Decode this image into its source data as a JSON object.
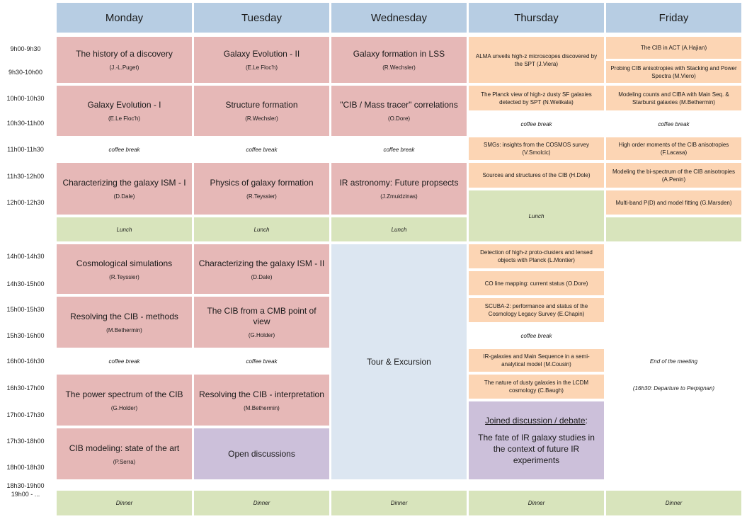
{
  "days": [
    "Monday",
    "Tuesday",
    "Wednesday",
    "Thursday",
    "Friday"
  ],
  "times": [
    "9h00-9h30",
    "9h30-10h00",
    "10h00-10h30",
    "10h30-11h00",
    "11h00-11h30",
    "11h30-12h00",
    "12h00-12h30",
    "14h00-14h30",
    "14h30-15h00",
    "15h00-15h30",
    "15h30-16h00",
    "16h00-16h30",
    "16h30-17h00",
    "17h00-17h30",
    "17h30-18h00",
    "18h00-18h30",
    "18h30-19h00",
    "19h00 - ..."
  ],
  "monday": {
    "s1": {
      "title": "The history of a discovery",
      "speaker": "(J.-L.Puget)"
    },
    "s2": {
      "title": "Galaxy Evolution - I",
      "speaker": "(E.Le Floc'h)"
    },
    "coffee1": "coffee break",
    "s3": {
      "title": "Characterizing the galaxy ISM - I",
      "speaker": "(D.Dale)"
    },
    "lunch": "Lunch",
    "s4": {
      "title": "Cosmological simulations",
      "speaker": "(R.Teyssier)"
    },
    "s5": {
      "title": "Resolving the CIB - methods",
      "speaker": "(M.Bethermin)"
    },
    "coffee2": "coffee break",
    "s6": {
      "title": "The power spectrum of the CIB",
      "speaker": "(G.Holder)"
    },
    "s7": {
      "title": "CIB modeling: state of the art",
      "speaker": "(P.Serra)"
    },
    "dinner": "Dinner"
  },
  "tuesday": {
    "s1": {
      "title": "Galaxy Evolution - II",
      "speaker": "(E.Le Floc'h)"
    },
    "s2": {
      "title": "Structure formation",
      "speaker": "(R.Wechsler)"
    },
    "coffee1": "coffee break",
    "s3": {
      "title": "Physics of galaxy formation",
      "speaker": "(R.Teyssier)"
    },
    "lunch": "Lunch",
    "s4": {
      "title": "Characterizing the galaxy ISM - II",
      "speaker": "(D.Dale)"
    },
    "s5": {
      "title": "The CIB from a CMB point of view",
      "speaker": "(G.Holder)"
    },
    "coffee2": "coffee break",
    "s6": {
      "title": "Resolving the CIB - interpretation",
      "speaker": "(M.Bethermin)"
    },
    "s7": {
      "title": "Open discussions"
    },
    "dinner": "Dinner"
  },
  "wednesday": {
    "s1": {
      "title": "Galaxy formation in LSS",
      "speaker": "(R.Wechsler)"
    },
    "s2": {
      "title": "\"CIB / Mass tracer\" correlations",
      "speaker": "(O.Dore)"
    },
    "coffee1": "coffee break",
    "s3": {
      "title": "IR astronomy: Future propsects",
      "speaker": "(J.Zmuidzinas)"
    },
    "lunch": "Lunch",
    "tour": "Tour & Excursion",
    "dinner": "Dinner"
  },
  "thursday": {
    "t1": "ALMA unveils high-z microscopes discovered by the SPT (J.Viera)",
    "t2": "The Planck view of high-z dusty SF galaxies detected by SPT (N.Welikala)",
    "coffee1": "coffee break",
    "t3": "SMGs: insights from the COSMOS survey (V.Smolcic)",
    "t4": "Sources and structures of the CIB (H.Dole)",
    "lunch": "Lunch",
    "t5": "Detection of high-z proto-clusters and lensed objects with Planck (L.Montier)",
    "t6": "CO line mapping: current status (O.Dore)",
    "t7": "SCUBA-2: performance and status of the Cosmology Legacy Survey (E.Chapin)",
    "coffee2": "coffee break",
    "t8": "IR-galaxies and Main Sequence in a semi-analytical model (M.Cousin)",
    "t9": "The nature of dusty galaxies in the LCDM cosmology (C.Baugh)",
    "debate_heading": "Joined discussion / debate",
    "debate_colon": ":",
    "debate_text": "The fate of IR galaxy studies in the context of future IR experiments",
    "dinner": "Dinner"
  },
  "friday": {
    "t1": "The CIB in ACT (A.Hajian)",
    "t2": "Probing CIB anisotropies with Stacking and Power Spectra (M.Viero)",
    "t3": "Modeling counts and CIBA with Main Seq. & Starburst galaxies (M.Bethermin)",
    "coffee1": "coffee break",
    "t4": "High order moments of the CIB anisotropies (F.Lacasa)",
    "t5": "Modeling the bi-spectrum of the CIB anisotropies (A.Penin)",
    "t6": "Multi-band P(D) and model fitting (G.Marsden)",
    "end": "End of the meeting",
    "departure": "(16h30: Departure to Perpignan)",
    "dinner": "Dinner"
  }
}
